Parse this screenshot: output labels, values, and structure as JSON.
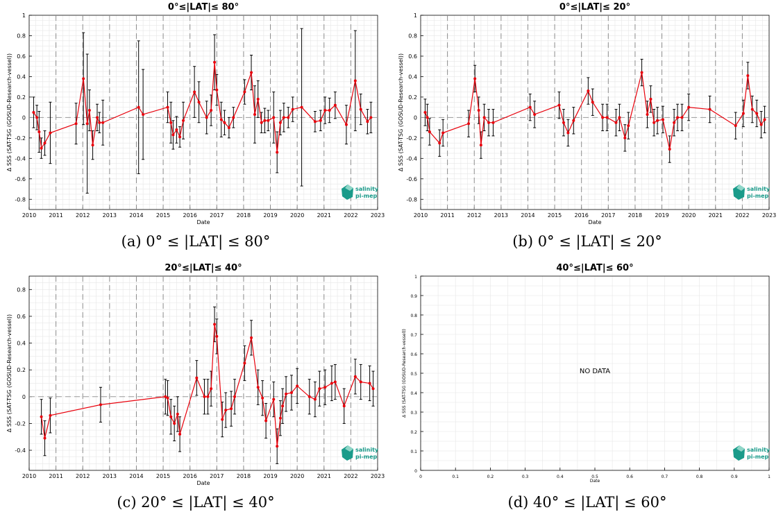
{
  "panels_meta": [
    {
      "caption": "(a) 0° ≤ |LAT| ≤ 80°"
    },
    {
      "caption": "(b) 0° ≤ |LAT| ≤ 20°"
    },
    {
      "caption": "(c) 20° ≤ |LAT| ≤ 40°"
    },
    {
      "caption": "(d) 40° ≤ |LAT| ≤ 60°"
    }
  ],
  "logo": {
    "line1": "salinity",
    "line2": "pi-mep",
    "color": "#1a9b8a"
  },
  "colors": {
    "series": "#e8000b",
    "errorbar": "#000000",
    "grid": "#e6e6e6",
    "dashed": "#8c8c8c"
  },
  "chart_data": [
    {
      "type": "line",
      "title": "0°≤|LAT|≤ 80°",
      "xlabel": "Date",
      "ylabel": "Δ SSS (SAT-TSG (GOSUD-Research-vessel))",
      "xlim": [
        "2010-01-01",
        "2023-01-01"
      ],
      "ylim": [
        -0.9,
        1
      ],
      "yticks": [
        -0.8,
        -0.6,
        -0.4,
        -0.2,
        0,
        0.2,
        0.4,
        0.6,
        0.8,
        1
      ],
      "yticklabels": [
        "-0.8",
        "-0.6",
        "-0.4",
        "-0.2",
        "0",
        "0.2",
        "0.4",
        "0.6",
        "0.8",
        "1"
      ],
      "xticklabels": [
        "2010",
        "2011",
        "2012",
        "2013",
        "2014",
        "2015",
        "2016",
        "2017",
        "2018",
        "2019",
        "2020",
        "2021",
        "2022",
        "2023"
      ],
      "grid": true,
      "series": [
        {
          "x": [
            "2010-03-01",
            "2010-04-15",
            "2010-05-15",
            "2010-06-15",
            "2010-08-01",
            "2010-10-15",
            "2011-10-01",
            "2012-01-10",
            "2012-03-01",
            "2012-04-01",
            "2012-05-15",
            "2012-07-15",
            "2012-08-15",
            "2012-10-01",
            "2014-02-01",
            "2014-04-01",
            "2015-03-01",
            "2015-04-15",
            "2015-05-15",
            "2015-07-01",
            "2015-08-15",
            "2015-10-01",
            "2016-03-01",
            "2016-05-01",
            "2016-08-15",
            "2016-10-15",
            "2016-12-01",
            "2017-01-01",
            "2017-03-01",
            "2017-04-15",
            "2017-06-15",
            "2017-08-15",
            "2018-01-15",
            "2018-04-15",
            "2018-06-01",
            "2018-07-15",
            "2018-09-01",
            "2018-10-15",
            "2018-12-01",
            "2019-02-15",
            "2019-04-01",
            "2019-05-15",
            "2019-07-01",
            "2019-09-01",
            "2019-11-01",
            "2020-03-01",
            "2020-09-01",
            "2020-11-15",
            "2021-01-15",
            "2021-03-15",
            "2021-06-01",
            "2021-11-01",
            "2022-03-01",
            "2022-05-15",
            "2022-08-15",
            "2022-10-01"
          ],
          "y": [
            0.05,
            0.0,
            -0.14,
            -0.3,
            -0.25,
            -0.15,
            -0.06,
            0.38,
            -0.06,
            0.07,
            -0.27,
            0.0,
            -0.05,
            -0.05,
            0.1,
            0.03,
            0.1,
            -0.05,
            -0.17,
            -0.12,
            -0.19,
            -0.03,
            0.25,
            0.15,
            0.0,
            0.07,
            0.54,
            0.27,
            -0.02,
            -0.05,
            -0.1,
            0.0,
            0.25,
            0.44,
            0.03,
            0.18,
            -0.05,
            -0.03,
            -0.03,
            0.0,
            -0.34,
            -0.05,
            0.0,
            0.0,
            0.08,
            0.1,
            -0.04,
            -0.03,
            0.07,
            0.07,
            0.12,
            -0.07,
            0.36,
            0.08,
            -0.04,
            0.0
          ],
          "err": [
            0.15,
            0.12,
            0.2,
            0.1,
            0.12,
            0.3,
            0.2,
            0.45,
            0.68,
            0.2,
            0.14,
            0.13,
            0.1,
            0.22,
            0.65,
            0.44,
            0.15,
            0.2,
            0.14,
            0.13,
            0.1,
            0.18,
            0.25,
            0.2,
            0.16,
            0.15,
            0.27,
            0.15,
            0.17,
            0.12,
            0.1,
            0.1,
            0.12,
            0.17,
            0.28,
            0.18,
            0.1,
            0.12,
            0.1,
            0.25,
            0.2,
            0.12,
            0.14,
            0.1,
            0.12,
            0.77,
            0.1,
            0.1,
            0.13,
            0.12,
            0.13,
            0.19,
            0.49,
            0.15,
            0.12,
            0.15
          ]
        }
      ]
    },
    {
      "type": "line",
      "title": "0°≤|LAT|≤ 20°",
      "xlabel": "Date",
      "ylabel": "Δ SSS (SAT-TSG (GOSUD-Research-vessel))",
      "xlim": [
        "2010-01-01",
        "2023-01-01"
      ],
      "ylim": [
        -0.9,
        1
      ],
      "yticks": [
        -0.8,
        -0.6,
        -0.4,
        -0.2,
        0,
        0.2,
        0.4,
        0.6,
        0.8,
        1
      ],
      "yticklabels": [
        "-0.8",
        "-0.6",
        "-0.4",
        "-0.2",
        "0",
        "0.2",
        "0.4",
        "0.6",
        "0.8",
        "1"
      ],
      "xticklabels": [
        "2010",
        "2011",
        "2012",
        "2013",
        "2014",
        "2015",
        "2016",
        "2017",
        "2018",
        "2019",
        "2020",
        "2021",
        "2022",
        "2023"
      ],
      "grid": true,
      "series": [
        {
          "x": [
            "2010-03-01",
            "2010-04-01",
            "2010-05-01",
            "2010-09-15",
            "2010-11-01",
            "2011-10-15",
            "2012-01-10",
            "2012-03-01",
            "2012-04-01",
            "2012-05-15",
            "2012-07-15",
            "2012-09-15",
            "2014-02-01",
            "2014-04-01",
            "2015-03-01",
            "2015-05-01",
            "2015-07-01",
            "2015-09-15",
            "2016-04-01",
            "2016-06-01",
            "2016-10-15",
            "2016-12-15",
            "2017-04-15",
            "2017-06-01",
            "2017-08-15",
            "2017-10-01",
            "2018-04-01",
            "2018-06-15",
            "2018-08-01",
            "2018-09-15",
            "2018-11-01",
            "2019-01-15",
            "2019-04-15",
            "2019-06-15",
            "2019-08-01",
            "2019-10-01",
            "2020-01-01",
            "2020-10-15",
            "2021-10-01",
            "2022-01-15",
            "2022-03-15",
            "2022-05-15",
            "2022-07-15",
            "2022-09-15",
            "2022-11-01"
          ],
          "y": [
            0.05,
            0.0,
            -0.14,
            -0.25,
            -0.15,
            -0.06,
            0.38,
            0.07,
            -0.27,
            0.0,
            -0.05,
            -0.05,
            0.1,
            0.03,
            0.12,
            -0.05,
            -0.15,
            -0.03,
            0.26,
            0.15,
            0.0,
            0.0,
            -0.05,
            0.0,
            -0.2,
            -0.08,
            0.44,
            0.03,
            0.18,
            -0.05,
            -0.03,
            -0.02,
            -0.31,
            -0.05,
            0.0,
            0.0,
            0.1,
            0.08,
            -0.08,
            0.04,
            0.41,
            0.08,
            0.04,
            -0.07,
            -0.02
          ]
        }
      ]
    },
    {
      "type": "line",
      "title": "20°≤|LAT|≤ 40°",
      "xlabel": "Date",
      "ylabel": "Δ SSS (SAT-TSG (GOSUD-Research-vessel))",
      "xlim": [
        "2010-01-01",
        "2023-01-01"
      ],
      "ylim": [
        -0.55,
        0.9
      ],
      "yticks": [
        -0.4,
        -0.2,
        0,
        0.2,
        0.4,
        0.6,
        0.8
      ],
      "yticklabels": [
        "-0.4",
        "-0.2",
        "0",
        "0.2",
        "0.4",
        "0.6",
        "0.8"
      ],
      "xticklabels": [
        "2010",
        "2011",
        "2012",
        "2013",
        "2014",
        "2015",
        "2016",
        "2017",
        "2018",
        "2019",
        "2020",
        "2021",
        "2022",
        "2023"
      ],
      "grid": true,
      "series": [
        {
          "x": [
            "2010-06-15",
            "2010-08-01",
            "2010-10-15",
            "2012-09-01",
            "2015-02-01",
            "2015-03-01",
            "2015-04-15",
            "2015-06-01",
            "2015-07-15",
            "2015-08-15",
            "2016-04-01",
            "2016-07-15",
            "2016-09-01",
            "2016-10-15",
            "2016-12-01",
            "2017-01-01",
            "2017-03-15",
            "2017-05-01",
            "2017-07-15",
            "2017-09-01",
            "2018-01-15",
            "2018-04-15",
            "2018-07-15",
            "2018-09-15",
            "2018-11-01",
            "2019-02-15",
            "2019-04-01",
            "2019-05-15",
            "2019-06-15",
            "2019-08-01",
            "2019-10-15",
            "2020-01-01",
            "2020-06-15",
            "2020-09-01",
            "2020-11-01",
            "2021-01-15",
            "2021-04-15",
            "2021-06-01",
            "2021-10-01",
            "2022-03-01",
            "2022-05-15",
            "2022-09-15",
            "2022-11-01"
          ],
          "y": [
            -0.15,
            -0.31,
            -0.14,
            -0.06,
            0.0,
            -0.01,
            -0.15,
            -0.2,
            -0.13,
            -0.28,
            0.14,
            0.0,
            0.0,
            0.06,
            0.54,
            0.45,
            -0.17,
            -0.1,
            -0.09,
            0.0,
            0.25,
            0.44,
            0.07,
            -0.01,
            -0.18,
            -0.02,
            -0.37,
            -0.16,
            -0.07,
            0.02,
            0.03,
            0.08,
            0.0,
            -0.02,
            0.06,
            0.07,
            0.1,
            0.11,
            -0.07,
            0.15,
            0.11,
            0.1,
            0.06
          ]
        }
      ]
    },
    {
      "type": "line",
      "title": "40°≤|LAT|≤ 60°",
      "xlabel": "Date",
      "ylabel": "Δ SSS (SAT-TSG (GOSUD-Research-vessel))",
      "xlim": [
        0,
        1
      ],
      "ylim": [
        0,
        1
      ],
      "xticklabels": [
        "0",
        "0.1",
        "0.2",
        "0.3",
        "0.4",
        "0.5",
        "0.6",
        "0.7",
        "0.8",
        "0.9",
        "1"
      ],
      "yticklabels": [
        "0",
        "0.1",
        "0.2",
        "0.3",
        "0.4",
        "0.5",
        "0.6",
        "0.7",
        "0.8",
        "0.9",
        "1"
      ],
      "grid": true,
      "annotation": "NO DATA",
      "series": []
    }
  ]
}
